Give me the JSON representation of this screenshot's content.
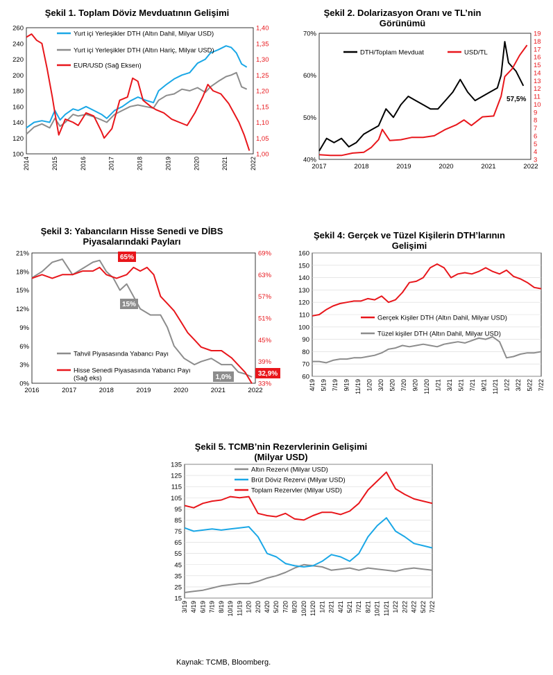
{
  "source": "Kaynak: TCMB, Bloomberg.",
  "colors": {
    "blue": "#1aa7e6",
    "gray": "#8c8c8c",
    "red": "#e8161b",
    "black": "#000000"
  },
  "chart_data": [
    {
      "id": "c1",
      "type": "line",
      "title": "Şekil 1. Toplam Döviz Mevduatının Gelişimi",
      "x_ticks": [
        "2014",
        "2015",
        "2016",
        "2017",
        "2018",
        "2019",
        "2020",
        "2021",
        "2022"
      ],
      "xlim": [
        2014,
        2022.75
      ],
      "ylim": [
        100,
        260
      ],
      "y_ticks": [
        "100",
        "120",
        "140",
        "160",
        "180",
        "200",
        "220",
        "240",
        "260"
      ],
      "y2lim": [
        1.0,
        1.4
      ],
      "y2_ticks": [
        "1,00",
        "1,05",
        "1,10",
        "1,15",
        "1,20",
        "1,25",
        "1,30",
        "1,35",
        "1,40"
      ],
      "legend_position": "top-right",
      "series": [
        {
          "name": "Yurt içi Yerleşikler DTH (Altın Dahil, Milyar USD)",
          "color": "#1aa7e6",
          "axis": "left",
          "x": [
            2014,
            2014.3,
            2014.6,
            2014.9,
            2015.1,
            2015.3,
            2015.5,
            2015.8,
            2016,
            2016.3,
            2016.6,
            2016.9,
            2017.1,
            2017.4,
            2017.7,
            2018,
            2018.3,
            2018.6,
            2018.9,
            2019.1,
            2019.4,
            2019.7,
            2020,
            2020.3,
            2020.6,
            2020.9,
            2021.1,
            2021.4,
            2021.7,
            2021.9,
            2022.1,
            2022.3,
            2022.5
          ],
          "y": [
            133,
            140,
            142,
            140,
            155,
            143,
            150,
            157,
            155,
            160,
            155,
            150,
            145,
            155,
            160,
            167,
            172,
            168,
            165,
            180,
            188,
            195,
            200,
            203,
            215,
            220,
            228,
            232,
            237,
            235,
            228,
            214,
            210
          ]
        },
        {
          "name": "Yurt içi Yerleşikler DTH (Altın Hariç, Milyar USD)",
          "color": "#8c8c8c",
          "axis": "left",
          "x": [
            2014,
            2014.3,
            2014.6,
            2014.9,
            2015.1,
            2015.3,
            2015.5,
            2015.8,
            2016,
            2016.3,
            2016.6,
            2016.9,
            2017.1,
            2017.4,
            2017.7,
            2018,
            2018.3,
            2018.6,
            2018.9,
            2019.1,
            2019.4,
            2019.7,
            2020,
            2020.3,
            2020.6,
            2020.9,
            2021.1,
            2021.4,
            2021.7,
            2021.9,
            2022.1,
            2022.3,
            2022.5
          ],
          "y": [
            125,
            134,
            138,
            133,
            145,
            135,
            140,
            150,
            148,
            150,
            147,
            143,
            140,
            150,
            155,
            160,
            162,
            160,
            158,
            168,
            174,
            176,
            182,
            180,
            184,
            178,
            185,
            192,
            198,
            200,
            203,
            185,
            182
          ]
        },
        {
          "name": "EUR/USD (Sağ Eksen)",
          "color": "#e8161b",
          "axis": "right",
          "x": [
            2014,
            2014.2,
            2014.4,
            2014.6,
            2014.8,
            2015,
            2015.1,
            2015.25,
            2015.5,
            2015.8,
            2016,
            2016.3,
            2016.6,
            2016.9,
            2017,
            2017.3,
            2017.6,
            2017.9,
            2018.1,
            2018.3,
            2018.5,
            2018.8,
            2019,
            2019.3,
            2019.6,
            2019.9,
            2020.2,
            2020.5,
            2020.8,
            2021,
            2021.2,
            2021.5,
            2021.8,
            2022,
            2022.2,
            2022.4,
            2022.6
          ],
          "y": [
            1.37,
            1.38,
            1.36,
            1.35,
            1.27,
            1.18,
            1.13,
            1.06,
            1.11,
            1.1,
            1.09,
            1.13,
            1.12,
            1.07,
            1.05,
            1.08,
            1.17,
            1.18,
            1.24,
            1.23,
            1.17,
            1.15,
            1.14,
            1.13,
            1.11,
            1.1,
            1.09,
            1.13,
            1.18,
            1.22,
            1.2,
            1.19,
            1.16,
            1.13,
            1.1,
            1.06,
            1.01
          ]
        }
      ]
    },
    {
      "id": "c2",
      "type": "line",
      "title": "Şekil 2. Dolarizasyon Oranı ve TL’nin Görünümü",
      "x_ticks": [
        "2017",
        "2018",
        "2019",
        "2020",
        "2021",
        "2022"
      ],
      "xlim": [
        2017,
        2022.7
      ],
      "ylim": [
        40,
        70
      ],
      "y_ticks": [
        "40%",
        "50%",
        "60%",
        "70%"
      ],
      "y2lim": [
        3,
        19
      ],
      "y2_ticks": [
        "3",
        "4",
        "5",
        "6",
        "7",
        "8",
        "9",
        "10",
        "11",
        "12",
        "13",
        "14",
        "15",
        "16",
        "17",
        "18",
        "19"
      ],
      "annotation": "57,5%",
      "legend_position": "top-left",
      "series": [
        {
          "name": "DTH/Toplam Mevduat",
          "color": "#000000",
          "axis": "left",
          "x": [
            2017,
            2017.2,
            2017.4,
            2017.6,
            2017.8,
            2018,
            2018.2,
            2018.4,
            2018.6,
            2018.8,
            2019,
            2019.2,
            2019.4,
            2019.6,
            2019.8,
            2020,
            2020.2,
            2020.4,
            2020.6,
            2020.8,
            2021,
            2021.2,
            2021.4,
            2021.6,
            2021.8,
            2021.9,
            2022,
            2022.1,
            2022.3,
            2022.5
          ],
          "y": [
            42,
            45,
            44,
            45,
            43,
            44,
            46,
            47,
            48,
            52,
            50,
            53,
            55,
            54,
            53,
            52,
            52,
            54,
            56,
            59,
            56,
            54,
            55,
            56,
            57,
            60,
            68,
            63,
            61,
            57.5
          ]
        },
        {
          "name": "USD/TL",
          "color": "#e8161b",
          "axis": "right",
          "x": [
            2017,
            2017.3,
            2017.6,
            2017.9,
            2018.2,
            2018.4,
            2018.6,
            2018.7,
            2018.9,
            2019.2,
            2019.5,
            2019.8,
            2020.1,
            2020.4,
            2020.7,
            2020.9,
            2021.1,
            2021.4,
            2021.7,
            2021.9,
            2022,
            2022.2,
            2022.4,
            2022.6
          ],
          "y": [
            3.6,
            3.5,
            3.5,
            3.8,
            3.9,
            4.5,
            5.5,
            6.8,
            5.4,
            5.5,
            5.8,
            5.8,
            6.0,
            6.8,
            7.4,
            8.0,
            7.3,
            8.4,
            8.5,
            11.0,
            13.5,
            14.5,
            16.2,
            17.5
          ]
        }
      ]
    },
    {
      "id": "c3",
      "type": "line",
      "title": "Şekil 3: Yabancıların Hisse Senedi ve DİBS Piyasalarındaki Payları",
      "x_ticks": [
        "2016",
        "2017",
        "2018",
        "2019",
        "2020",
        "2021",
        "2022"
      ],
      "xlim": [
        2016,
        2022.6
      ],
      "ylim": [
        0,
        21
      ],
      "y_ticks": [
        "0%",
        "3%",
        "6%",
        "9%",
        "12%",
        "15%",
        "18%",
        "21%"
      ],
      "y2lim": [
        33,
        69
      ],
      "y2_ticks": [
        "33%",
        "39%",
        "45%",
        "51%",
        "57%",
        "63%",
        "69%"
      ],
      "annotations": [
        "65%",
        "15%",
        "1,0%",
        "32,9%"
      ],
      "legend_position": "bottom-left",
      "series": [
        {
          "name": "Tahvil Piyasasında Yabancı Payı",
          "color": "#8c8c8c",
          "axis": "left",
          "x": [
            2016,
            2016.3,
            2016.6,
            2016.9,
            2017.2,
            2017.5,
            2017.8,
            2018,
            2018.2,
            2018.4,
            2018.6,
            2018.8,
            2019,
            2019.2,
            2019.5,
            2019.8,
            2020,
            2020.2,
            2020.5,
            2020.8,
            2021,
            2021.3,
            2021.6,
            2021.9,
            2022.1,
            2022.3,
            2022.5
          ],
          "y": [
            17,
            18,
            19.5,
            20,
            17.5,
            18.5,
            19.5,
            19.8,
            18,
            17,
            15,
            16,
            14,
            12,
            11,
            11,
            9,
            6,
            4,
            3,
            3.5,
            4,
            3,
            3,
            1.8,
            1.5,
            1.0
          ]
        },
        {
          "name": "Hisse Senedi Piyasasında Yabancı Payı (Sağ eks)",
          "color": "#e8161b",
          "axis": "right",
          "x": [
            2016,
            2016.3,
            2016.6,
            2016.9,
            2017.2,
            2017.5,
            2017.8,
            2018,
            2018.2,
            2018.5,
            2018.8,
            2019,
            2019.2,
            2019.4,
            2019.6,
            2019.8,
            2020,
            2020.2,
            2020.4,
            2020.6,
            2020.8,
            2021,
            2021.3,
            2021.6,
            2021.9,
            2022.1,
            2022.3,
            2022.5
          ],
          "y": [
            62,
            63,
            62,
            63,
            63,
            64,
            64,
            65,
            63,
            62,
            63,
            65,
            64,
            65,
            63,
            57,
            55,
            53,
            50,
            47,
            45,
            43,
            42,
            42,
            40,
            38,
            36,
            32.9
          ]
        }
      ]
    },
    {
      "id": "c4",
      "type": "line",
      "title": "Şekil 4: Gerçek ve Tüzel Kişilerin DTH’larının Gelişimi",
      "x_ticks": [
        "4/19",
        "5/19",
        "7/19",
        "9/19",
        "11/19",
        "1/20",
        "3/20",
        "5/20",
        "7/20",
        "9/20",
        "11/20",
        "1/21",
        "3/21",
        "5/21",
        "7/21",
        "9/21",
        "11/21",
        "1/22",
        "3/22",
        "5/22",
        "7/22"
      ],
      "ylim": [
        60,
        160
      ],
      "y_ticks": [
        "60",
        "70",
        "80",
        "90",
        "100",
        "110",
        "120",
        "130",
        "140",
        "150",
        "160"
      ],
      "legend_position": "center-right",
      "series": [
        {
          "name": "Gerçek Kişiler DTH (Altın Dahil, Milyar USD)",
          "color": "#e8161b",
          "y": [
            109,
            110,
            114,
            117,
            119,
            120,
            121,
            121,
            123,
            122,
            125,
            120,
            122,
            128,
            136,
            137,
            140,
            148,
            151,
            148,
            140,
            143,
            144,
            143,
            145,
            148,
            145,
            143,
            146,
            141,
            139,
            136,
            132,
            131
          ]
        },
        {
          "name": "Tüzel kişiler DTH (Altın Dahil, Milyar USD)",
          "color": "#8c8c8c",
          "y": [
            72,
            72,
            71,
            73,
            74,
            74,
            75,
            75,
            76,
            77,
            79,
            82,
            83,
            85,
            84,
            85,
            86,
            85,
            84,
            86,
            87,
            88,
            87,
            89,
            91,
            90,
            92,
            88,
            75,
            76,
            78,
            79,
            79,
            80
          ]
        }
      ]
    },
    {
      "id": "c5",
      "type": "line",
      "title": "Şekil 5. TCMB’nin Rezervlerinin Gelişimi (Milyar USD)",
      "x_ticks": [
        "3/19",
        "4/19",
        "6/19",
        "7/19",
        "8/19",
        "10/19",
        "11/19",
        "1/20",
        "2/20",
        "4/20",
        "5/20",
        "7/20",
        "8/20",
        "10/20",
        "11/20",
        "1/21",
        "2/21",
        "4/21",
        "5/21",
        "7/21",
        "8/21",
        "10/21",
        "11/21",
        "1/22",
        "2/22",
        "4/22",
        "5/22",
        "7/22"
      ],
      "ylim": [
        15,
        135
      ],
      "y_ticks": [
        "15",
        "25",
        "35",
        "45",
        "55",
        "65",
        "75",
        "85",
        "95",
        "105",
        "115",
        "125",
        "135"
      ],
      "legend_position": "top-center",
      "series": [
        {
          "name": "Altın Rezervi (Milyar USD)",
          "color": "#8c8c8c",
          "y": [
            20,
            21,
            22,
            24,
            26,
            27,
            28,
            28,
            30,
            33,
            35,
            38,
            42,
            45,
            44,
            43,
            40,
            41,
            42,
            40,
            42,
            41,
            40,
            39,
            41,
            42,
            41,
            40
          ]
        },
        {
          "name": "Brüt Döviz Rezervi (Milyar USD)",
          "color": "#1aa7e6",
          "y": [
            78,
            75,
            76,
            77,
            76,
            77,
            78,
            79,
            70,
            55,
            52,
            46,
            44,
            43,
            44,
            48,
            54,
            52,
            48,
            55,
            70,
            80,
            87,
            75,
            70,
            64,
            62,
            60
          ]
        },
        {
          "name": "Toplam Rezervler (Milyar USD)",
          "color": "#e8161b",
          "y": [
            98,
            96,
            100,
            102,
            103,
            106,
            105,
            106,
            91,
            89,
            88,
            91,
            86,
            85,
            89,
            92,
            92,
            90,
            93,
            100,
            112,
            120,
            128,
            113,
            108,
            104,
            102,
            100
          ]
        }
      ]
    }
  ]
}
